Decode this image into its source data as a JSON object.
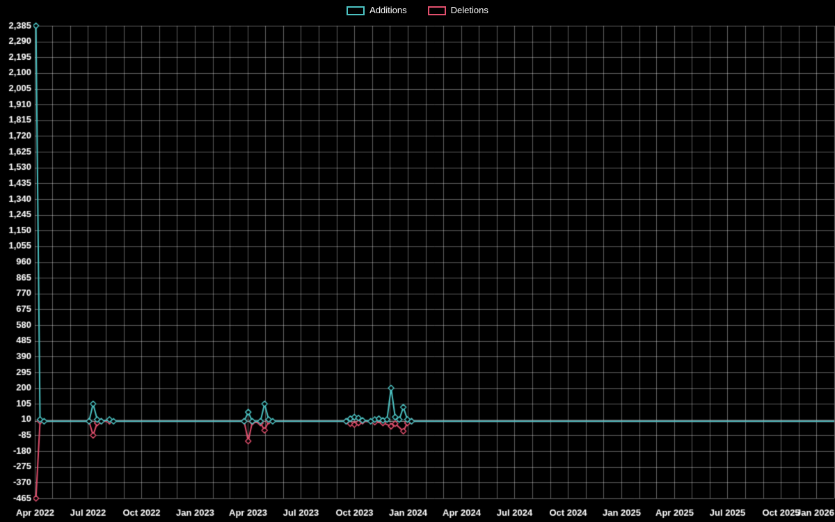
{
  "chart_data": {
    "type": "line",
    "title": "",
    "legend": [
      "Additions",
      "Deletions"
    ],
    "legend_position": "top-center",
    "background_color": "#000000",
    "text_color": "#ffffff",
    "grid_color": "rgba(255,255,255,0.38)",
    "zero_line_color": "rgba(255,255,255,0.6)",
    "x_start": "2022-04-01",
    "x_end": "2026-01-01",
    "x_grid": "monthly",
    "x_label_interval": "quarterly",
    "x_tick_labels": [
      "Apr 2022",
      "Jul 2022",
      "Oct 2022",
      "Jan 2023",
      "Apr 2023",
      "Jul 2023",
      "Oct 2023",
      "Jan 2024",
      "Apr 2024",
      "Jul 2024",
      "Oct 2024",
      "Jan 2025",
      "Apr 2025",
      "Jul 2025",
      "Oct 2025",
      "Jan 2026"
    ],
    "ylim": [
      -465,
      2385
    ],
    "y_tick_step": 95,
    "y_tick_labels": [
      "-465",
      "-370",
      "-275",
      "-180",
      "-85",
      "10",
      "105",
      "200",
      "295",
      "390",
      "485",
      "580",
      "675",
      "770",
      "865",
      "960",
      "1,055",
      "1,150",
      "1,245",
      "1,340",
      "1,435",
      "1,530",
      "1,625",
      "1,720",
      "1,815",
      "1,910",
      "2,005",
      "2,100",
      "2,195",
      "2,290",
      "2,385"
    ],
    "series": [
      {
        "name": "Additions",
        "color": "#4cc3c3",
        "marker": "diamond",
        "points": [
          [
            "2022-04-03",
            2385
          ],
          [
            "2022-04-10",
            10
          ],
          [
            "2022-04-17",
            0
          ],
          [
            "2022-07-03",
            0
          ],
          [
            "2022-07-10",
            105
          ],
          [
            "2022-07-17",
            10
          ],
          [
            "2022-07-24",
            0
          ],
          [
            "2022-08-07",
            10
          ],
          [
            "2022-08-14",
            0
          ],
          [
            "2023-03-26",
            0
          ],
          [
            "2023-04-02",
            55
          ],
          [
            "2023-04-09",
            0
          ],
          [
            "2023-04-23",
            0
          ],
          [
            "2023-04-30",
            105
          ],
          [
            "2023-05-07",
            10
          ],
          [
            "2023-05-14",
            0
          ],
          [
            "2023-09-17",
            0
          ],
          [
            "2023-09-24",
            15
          ],
          [
            "2023-10-01",
            25
          ],
          [
            "2023-10-08",
            20
          ],
          [
            "2023-10-15",
            5
          ],
          [
            "2023-10-29",
            0
          ],
          [
            "2023-11-05",
            10
          ],
          [
            "2023-11-12",
            15
          ],
          [
            "2023-11-19",
            5
          ],
          [
            "2023-11-26",
            10
          ],
          [
            "2023-12-03",
            200
          ],
          [
            "2023-12-10",
            25
          ],
          [
            "2023-12-17",
            10
          ],
          [
            "2023-12-24",
            85
          ],
          [
            "2023-12-31",
            10
          ],
          [
            "2024-01-07",
            0
          ],
          [
            "2026-01-01",
            0
          ]
        ]
      },
      {
        "name": "Deletions",
        "color": "#e3506e",
        "marker": "diamond",
        "points": [
          [
            "2022-04-03",
            -465
          ],
          [
            "2022-04-10",
            0
          ],
          [
            "2022-07-03",
            0
          ],
          [
            "2022-07-10",
            -85
          ],
          [
            "2022-07-17",
            -10
          ],
          [
            "2022-07-24",
            0
          ],
          [
            "2022-08-07",
            0
          ],
          [
            "2023-03-26",
            0
          ],
          [
            "2023-04-02",
            -120
          ],
          [
            "2023-04-09",
            -5
          ],
          [
            "2023-04-23",
            -10
          ],
          [
            "2023-04-30",
            -55
          ],
          [
            "2023-05-07",
            0
          ],
          [
            "2023-09-17",
            0
          ],
          [
            "2023-09-24",
            -15
          ],
          [
            "2023-10-01",
            -20
          ],
          [
            "2023-10-08",
            -10
          ],
          [
            "2023-10-15",
            0
          ],
          [
            "2023-11-05",
            -5
          ],
          [
            "2023-11-19",
            -10
          ],
          [
            "2023-12-03",
            -30
          ],
          [
            "2023-12-10",
            -15
          ],
          [
            "2023-12-24",
            -60
          ],
          [
            "2023-12-31",
            -10
          ],
          [
            "2024-01-07",
            0
          ],
          [
            "2026-01-01",
            0
          ]
        ]
      }
    ]
  }
}
